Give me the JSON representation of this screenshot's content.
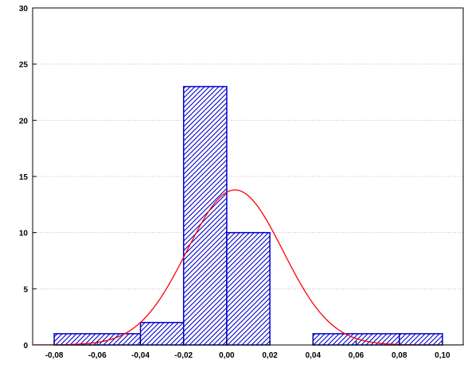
{
  "chart_data": {
    "type": "bar",
    "subtype": "histogram",
    "bins": [
      {
        "start": -0.08,
        "end": -0.04,
        "value": 1
      },
      {
        "start": -0.04,
        "end": -0.02,
        "value": 2
      },
      {
        "start": -0.02,
        "end": 0.0,
        "value": 23
      },
      {
        "start": 0.0,
        "end": 0.02,
        "value": 10
      },
      {
        "start": 0.04,
        "end": 0.08,
        "value": 1
      },
      {
        "start": 0.08,
        "end": 0.1,
        "value": 1
      }
    ],
    "xlim": [
      -0.09,
      0.11
    ],
    "ylim": [
      0,
      30
    ],
    "x_ticks": [
      -0.08,
      -0.06,
      -0.04,
      -0.02,
      0.0,
      0.02,
      0.04,
      0.06,
      0.08,
      0.1
    ],
    "x_tick_labels": [
      "-0,08",
      "-0,06",
      "-0,04",
      "-0,02",
      "0,00",
      "0,02",
      "0,04",
      "0,06",
      "0,08",
      "0,10"
    ],
    "y_ticks": [
      0,
      5,
      10,
      15,
      20,
      25,
      30
    ],
    "y_tick_labels": [
      "0",
      "5",
      "10",
      "15",
      "20",
      "25",
      "30"
    ],
    "grid": "horizontal dotted",
    "bar_fill": "diagonal hatch",
    "colors": {
      "bar_stroke": "#0000cc",
      "bar_hatch": "#0000cc",
      "curve": "#ff0000",
      "grid": "#bdbdbd"
    },
    "fitted_curve": {
      "type": "normal",
      "mean": 0.0038,
      "sd": 0.0223,
      "peak": 13.8
    }
  }
}
